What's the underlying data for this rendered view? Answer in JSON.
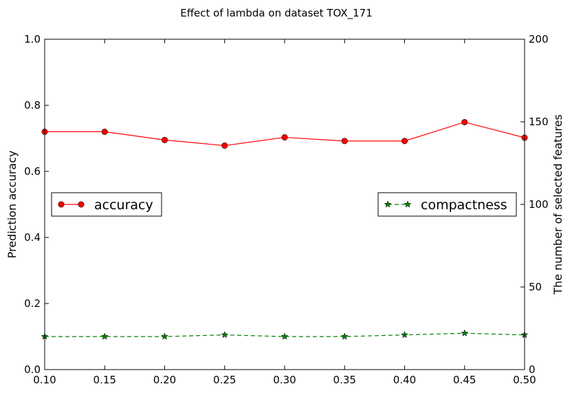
{
  "chart_data": {
    "type": "line",
    "title": "Effect of lambda on dataset TOX_171",
    "xlabel": "",
    "ylabel": "Prediction accuracy",
    "y2label": "The number of selected features",
    "x": [
      0.1,
      0.15,
      0.2,
      0.25,
      0.3,
      0.35,
      0.4,
      0.45,
      0.5
    ],
    "xlim": [
      0.1,
      0.5
    ],
    "ylim": [
      0.0,
      1.0
    ],
    "y2lim": [
      0,
      200
    ],
    "xticks": [
      "0.10",
      "0.15",
      "0.20",
      "0.25",
      "0.30",
      "0.35",
      "0.40",
      "0.45",
      "0.50"
    ],
    "yticks": [
      "0.0",
      "0.2",
      "0.4",
      "0.6",
      "0.8",
      "1.0"
    ],
    "y2ticks": [
      "0",
      "50",
      "100",
      "150",
      "200"
    ],
    "grid": false,
    "series": [
      {
        "name": "accuracy",
        "axis": "left",
        "color": "#ff0000",
        "marker": "circle",
        "linestyle": "solid",
        "values": [
          0.72,
          0.72,
          0.695,
          0.678,
          0.703,
          0.692,
          0.692,
          0.749,
          0.702
        ],
        "legend_position": "left-middle"
      },
      {
        "name": "compactness",
        "axis": "right",
        "color": "#008000",
        "marker": "star",
        "linestyle": "dashed",
        "values": [
          20,
          20,
          20,
          21,
          20,
          20,
          21,
          22,
          21
        ],
        "legend_position": "right-middle"
      }
    ]
  }
}
